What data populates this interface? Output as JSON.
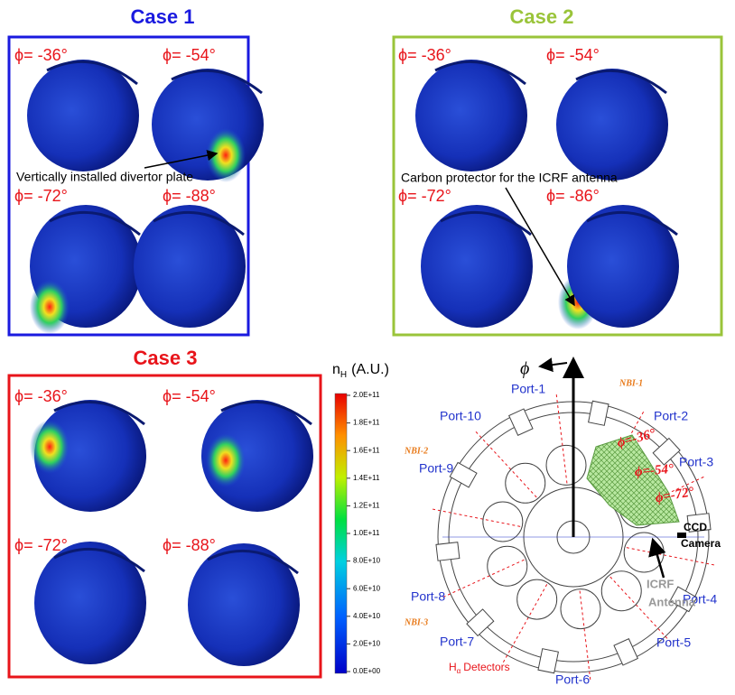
{
  "cases": [
    {
      "title": "Case 1",
      "panels": [
        "ϕ= -36°",
        "ϕ= -54°",
        "ϕ= -72°",
        "ϕ= -88°"
      ],
      "annotation": "Vertically installed divertor plate"
    },
    {
      "title": "Case 2",
      "panels": [
        "ϕ= -36°",
        "ϕ= -54°",
        "ϕ= -72°",
        "ϕ= -86°"
      ],
      "annotation": "Carbon protector for the ICRF antenna"
    },
    {
      "title": "Case 3",
      "panels": [
        "ϕ= -36°",
        "ϕ= -54°",
        "ϕ= -72°",
        "ϕ= -88°"
      ]
    }
  ],
  "colorbar": {
    "symbol": "n",
    "subscript": "H",
    "unit": "(A.U.)",
    "ticks": [
      "2.0E+11",
      "1.8E+11",
      "1.6E+11",
      "1.4E+11",
      "1.2E+11",
      "1.0E+11",
      "8.0E+10",
      "6.0E+10",
      "4.0E+10",
      "2.0E+10",
      "0.0E+00"
    ]
  },
  "diagram": {
    "axis_label": "ϕ",
    "ports": [
      "Port-1",
      "Port-2",
      "Port-3",
      "Port-4",
      "Port-5",
      "Port-6",
      "Port-7",
      "Port-8",
      "Port-9",
      "Port-10"
    ],
    "nbi": [
      "NBI-1",
      "NBI-2",
      "NBI-3"
    ],
    "phi_marks": [
      "ϕ=-36°",
      "ϕ=-54°",
      "ϕ=-72°"
    ],
    "ccd": [
      "CCD",
      "Camera"
    ],
    "antenna": [
      "ICRF",
      "Antenna"
    ],
    "detectors": {
      "symbol": "H",
      "subscript": "α",
      "text": "Detectors"
    }
  }
}
